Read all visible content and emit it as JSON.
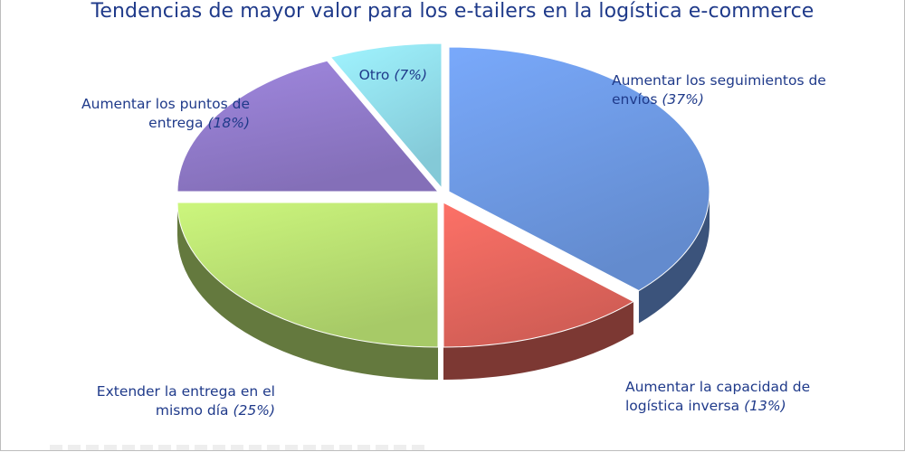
{
  "chart_data": {
    "type": "pie",
    "title": "Tendencias de mayor valor para los e-tailers en la logística e-commerce",
    "slices": [
      {
        "label_lines": [
          "Aumentar los seguimientos de",
          "envíos"
        ],
        "pct_text": "(37%)",
        "value": 37,
        "color": "#6c97e0"
      },
      {
        "label_lines": [
          "Aumentar la capacidad de",
          "logística inversa"
        ],
        "pct_text": "(13%)",
        "value": 13,
        "color": "#e2655c"
      },
      {
        "label_lines": [
          "Extender la entrega en el",
          "mismo día"
        ],
        "pct_text": "(25%)",
        "value": 25,
        "color": "#b6dc70"
      },
      {
        "label_lines": [
          "Aumentar los puntos de",
          "entrega"
        ],
        "pct_text": "(18%)",
        "value": 18,
        "color": "#8f79c8"
      },
      {
        "label_lines": [
          "Otro"
        ],
        "pct_text": "(7%)",
        "value": 7,
        "color": "#8fdaea"
      }
    ]
  }
}
